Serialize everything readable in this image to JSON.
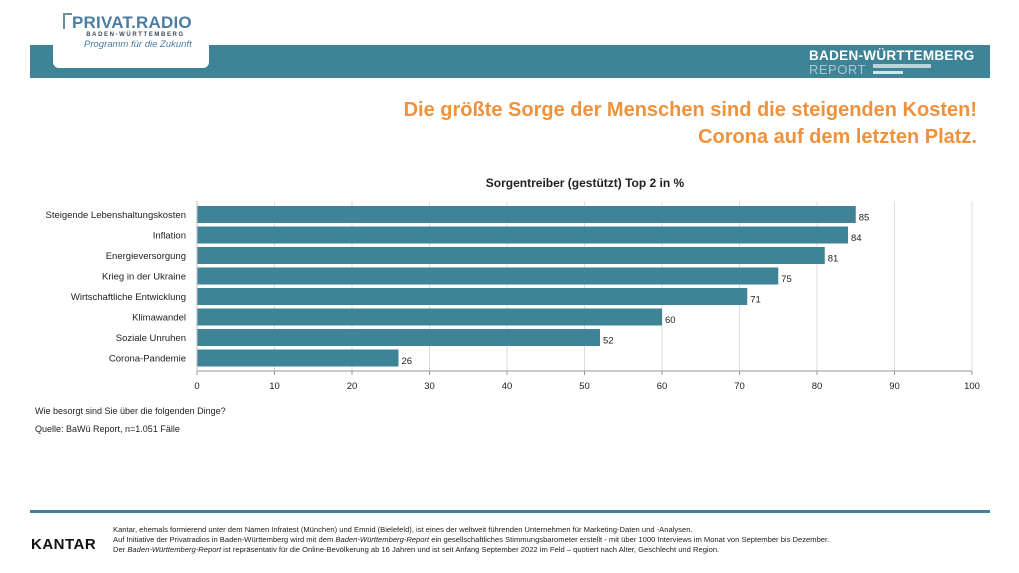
{
  "header": {
    "logo_title": "PRIVAT.RADIO",
    "logo_subtitle": "BADEN-WÜRTTEMBERG",
    "logo_tagline": "Programm für die Zukunft",
    "report_line1": "BADEN-WÜRTTEMBERG",
    "report_line2": "REPORT"
  },
  "headline": {
    "line1": "Die größte Sorge der Menschen sind die steigenden Kosten!",
    "line2": "Corona auf dem letzten Platz."
  },
  "colors": {
    "band": "#3f8396",
    "bar": "#3f8396",
    "headline": "#f0923b"
  },
  "chart_data": {
    "type": "bar",
    "orientation": "horizontal",
    "title": "Sorgentreiber (gestützt) Top 2 in %",
    "categories": [
      "Steigende Lebenshaltungskosten",
      "Inflation",
      "Energieversorgung",
      "Krieg in der Ukraine",
      "Wirtschaftliche Entwicklung",
      "Klimawandel",
      "Soziale Unruhen",
      "Corona-Pandemie"
    ],
    "values": [
      85,
      84,
      81,
      75,
      71,
      60,
      52,
      26
    ],
    "xlim": [
      0,
      100
    ],
    "xticks": [
      0,
      10,
      20,
      30,
      40,
      50,
      60,
      70,
      80,
      90,
      100
    ],
    "grid": true,
    "data_labels": true
  },
  "notes": {
    "question": "Wie besorgt sind Sie über die folgenden Dinge?",
    "source": "Quelle: BaWü Report, n=1.051 Fälle"
  },
  "footer": {
    "brand": "KANTAR",
    "line1": "Kantar, ehemals formierend unter dem Namen Infratest (München) und Emnid (Bielefeld), ist eines der weltweit führenden Unternehmen für Marketing-Daten und -Analysen.",
    "line2_a": "Auf Initiative der Privatradios in Baden-Württemberg wird mit dem ",
    "line2_em": "Baden-Württemberg-Report",
    "line2_b": " ein gesellschaftliches Stimmungsbarometer erstellt - mit über 1000 Interviews im Monat von September bis Dezember.",
    "line3_a": "Der ",
    "line3_em": "Baden-Württemberg-Report",
    "line3_b": " ist repräsentativ für die Online-Bevölkerung ab 16 Jahren und ist seit Anfang September 2022 im Feld – quotiert nach Alter, Geschlecht und Region."
  }
}
